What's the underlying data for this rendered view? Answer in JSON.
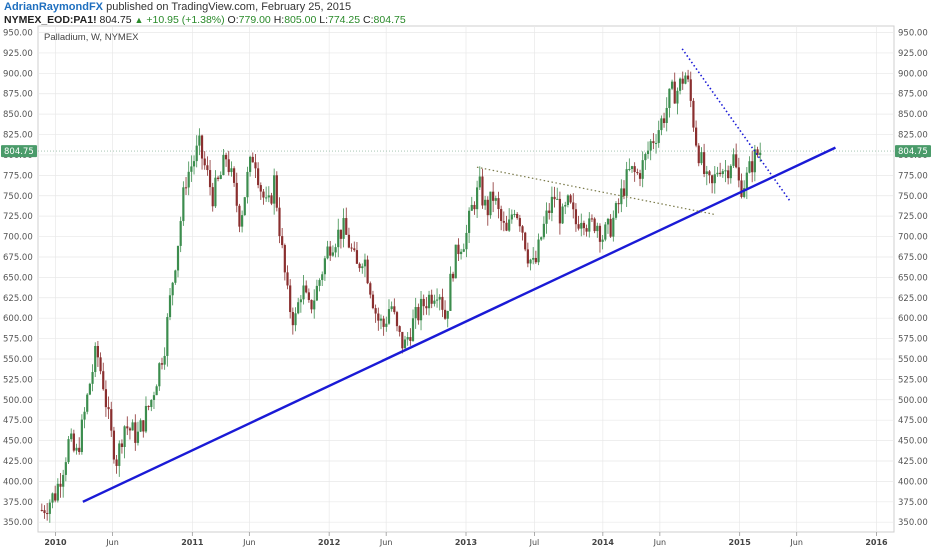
{
  "header": {
    "author": "AdrianRaymondFX",
    "published": "published on TradingView.com, February 25, 2015",
    "symbol": "NYMEX_EOD:PA1!",
    "last": "804.75",
    "change_icon": "up-triangle-icon",
    "change": "+10.95 (+1.38%)",
    "o_label": "O:",
    "o": "779.00",
    "h_label": "H:",
    "h": "805.00",
    "l_label": "L:",
    "l": "774.25",
    "c_label": "C:",
    "c": "804.75"
  },
  "colors": {
    "up_candle": "#3c8d4e",
    "down_candle": "#8a2f2f",
    "trendline": "#1a1ad6",
    "price_label_bg": "#4a9b6a",
    "grid": "#e8e8e8"
  },
  "chart_data": {
    "type": "candlestick",
    "title": "Palladium, W, NYMEX",
    "current_price": 804.75,
    "current_price_label": "804.75",
    "y_ticks": [
      "950.00",
      "925.00",
      "900.00",
      "875.00",
      "850.00",
      "825.00",
      "800.00",
      "775.00",
      "750.00",
      "725.00",
      "700.00",
      "675.00",
      "650.00",
      "625.00",
      "600.00",
      "575.00",
      "550.00",
      "525.00",
      "500.00",
      "475.00",
      "450.00",
      "425.00",
      "400.00",
      "375.00",
      "350.00"
    ],
    "ylim": [
      338,
      958
    ],
    "x_ticks": [
      {
        "label": "2010",
        "bold": true,
        "t": 0
      },
      {
        "label": "Jun",
        "bold": false,
        "t": 0.4167
      },
      {
        "label": "2011",
        "bold": true,
        "t": 1
      },
      {
        "label": "Jun",
        "bold": false,
        "t": 1.4167
      },
      {
        "label": "2012",
        "bold": true,
        "t": 2
      },
      {
        "label": "Jun",
        "bold": false,
        "t": 2.4167
      },
      {
        "label": "2013",
        "bold": true,
        "t": 3
      },
      {
        "label": "Jul",
        "bold": false,
        "t": 3.5
      },
      {
        "label": "2014",
        "bold": true,
        "t": 4
      },
      {
        "label": "Jun",
        "bold": false,
        "t": 4.4167
      },
      {
        "label": "2015",
        "bold": true,
        "t": 5
      },
      {
        "label": "Jun",
        "bold": false,
        "t": 5.4167
      },
      {
        "label": "2016",
        "bold": true,
        "t": 6
      }
    ],
    "price_path": [
      [
        -0.1,
        365
      ],
      [
        0.0,
        385
      ],
      [
        0.05,
        415
      ],
      [
        0.1,
        450
      ],
      [
        0.15,
        430
      ],
      [
        0.2,
        470
      ],
      [
        0.25,
        520
      ],
      [
        0.3,
        560
      ],
      [
        0.35,
        520
      ],
      [
        0.4,
        460
      ],
      [
        0.45,
        425
      ],
      [
        0.5,
        470
      ],
      [
        0.6,
        455
      ],
      [
        0.7,
        500
      ],
      [
        0.8,
        570
      ],
      [
        0.85,
        640
      ],
      [
        0.9,
        700
      ],
      [
        0.95,
        770
      ],
      [
        1.0,
        790
      ],
      [
        1.05,
        810
      ],
      [
        1.1,
        780
      ],
      [
        1.15,
        750
      ],
      [
        1.2,
        770
      ],
      [
        1.25,
        800
      ],
      [
        1.3,
        760
      ],
      [
        1.35,
        720
      ],
      [
        1.4,
        770
      ],
      [
        1.45,
        805
      ],
      [
        1.5,
        760
      ],
      [
        1.55,
        730
      ],
      [
        1.6,
        770
      ],
      [
        1.65,
        690
      ],
      [
        1.7,
        620
      ],
      [
        1.75,
        595
      ],
      [
        1.8,
        640
      ],
      [
        1.85,
        610
      ],
      [
        1.9,
        630
      ],
      [
        1.95,
        660
      ],
      [
        2.0,
        690
      ],
      [
        2.05,
        700
      ],
      [
        2.1,
        710
      ],
      [
        2.15,
        690
      ],
      [
        2.2,
        660
      ],
      [
        2.25,
        680
      ],
      [
        2.3,
        640
      ],
      [
        2.35,
        600
      ],
      [
        2.4,
        590
      ],
      [
        2.45,
        620
      ],
      [
        2.5,
        580
      ],
      [
        2.55,
        565
      ],
      [
        2.6,
        590
      ],
      [
        2.7,
        620
      ],
      [
        2.8,
        640
      ],
      [
        2.85,
        600
      ],
      [
        2.9,
        660
      ],
      [
        2.95,
        690
      ],
      [
        3.0,
        700
      ],
      [
        3.05,
        740
      ],
      [
        3.1,
        760
      ],
      [
        3.15,
        730
      ],
      [
        3.2,
        750
      ],
      [
        3.25,
        720
      ],
      [
        3.3,
        700
      ],
      [
        3.35,
        740
      ],
      [
        3.4,
        720
      ],
      [
        3.45,
        680
      ],
      [
        3.5,
        660
      ],
      [
        3.55,
        700
      ],
      [
        3.6,
        730
      ],
      [
        3.65,
        750
      ],
      [
        3.7,
        720
      ],
      [
        3.75,
        740
      ],
      [
        3.8,
        715
      ],
      [
        3.85,
        730
      ],
      [
        3.9,
        710
      ],
      [
        3.95,
        720
      ],
      [
        4.0,
        700
      ],
      [
        4.05,
        710
      ],
      [
        4.1,
        730
      ],
      [
        4.15,
        760
      ],
      [
        4.2,
        780
      ],
      [
        4.25,
        775
      ],
      [
        4.3,
        790
      ],
      [
        4.35,
        815
      ],
      [
        4.4,
        830
      ],
      [
        4.45,
        850
      ],
      [
        4.5,
        875
      ],
      [
        4.55,
        880
      ],
      [
        4.6,
        900
      ],
      [
        4.63,
        880
      ],
      [
        4.68,
        820
      ],
      [
        4.72,
        790
      ],
      [
        4.76,
        765
      ],
      [
        4.8,
        760
      ],
      [
        4.85,
        790
      ],
      [
        4.9,
        780
      ],
      [
        4.95,
        800
      ],
      [
        5.0,
        760
      ],
      [
        5.05,
        770
      ],
      [
        5.1,
        795
      ],
      [
        5.15,
        805
      ]
    ],
    "lines": [
      {
        "name": "support-trendline",
        "style": "solid",
        "points": [
          [
            0.2,
            375
          ],
          [
            5.7,
            809
          ]
        ]
      },
      {
        "name": "resistance-dotted",
        "style": "dotted",
        "points": [
          [
            3.08,
            785
          ],
          [
            4.82,
            727
          ]
        ]
      },
      {
        "name": "descending-dotted",
        "style": "dotted",
        "points": [
          [
            4.58,
            930
          ],
          [
            5.37,
            743
          ]
        ]
      }
    ]
  }
}
